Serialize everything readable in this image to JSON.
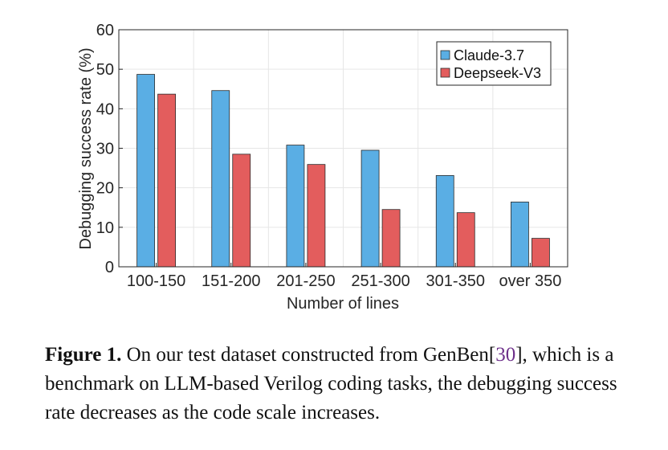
{
  "chart_data": {
    "type": "bar",
    "categories": [
      "100-150",
      "151-200",
      "201-250",
      "251-300",
      "301-350",
      "over 350"
    ],
    "series": [
      {
        "name": "Claude-3.7",
        "values": [
          48.7,
          44.6,
          30.8,
          29.5,
          23.1,
          16.4
        ],
        "color": "#5aaee4"
      },
      {
        "name": "Deepseek-V3",
        "values": [
          43.7,
          28.5,
          25.9,
          14.5,
          13.7,
          7.2
        ],
        "color": "#e35d5d"
      }
    ],
    "xlabel": "Number of lines",
    "ylabel": "Debugging success rate (%)",
    "ylim": [
      0,
      60
    ],
    "yticks": [
      0,
      10,
      20,
      30,
      40,
      50,
      60
    ],
    "grid": true,
    "legend": "top-right"
  },
  "caption": {
    "label": "Figure 1.",
    "text_before": " On our test dataset constructed from GenBen[",
    "citation": "30",
    "text_after": "], which is a benchmark on LLM-based Verilog coding tasks, the debugging success rate decreases as the code scale increases."
  }
}
